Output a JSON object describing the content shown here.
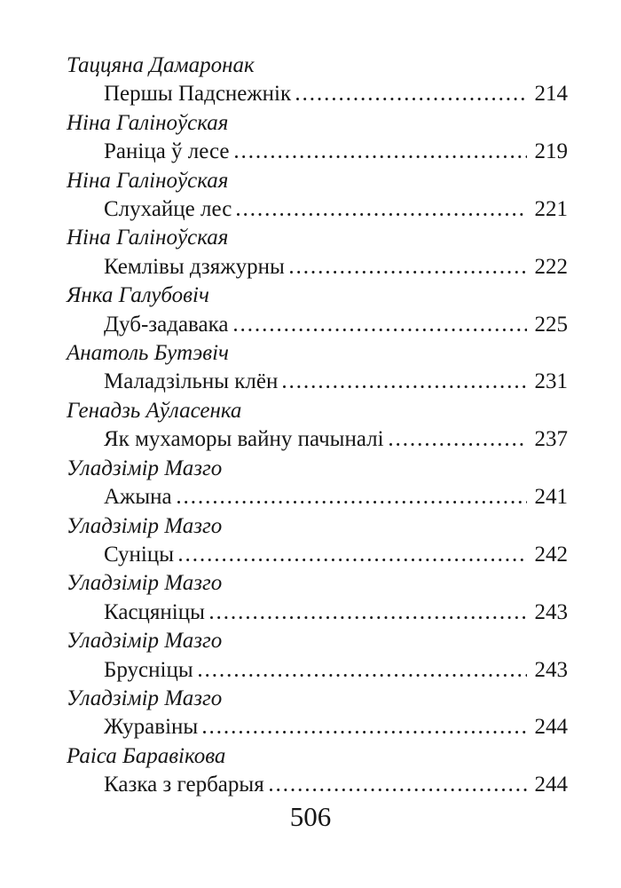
{
  "page": {
    "folio": "506"
  },
  "toc": {
    "entries": [
      {
        "author": "Таццяна Дамаронак",
        "title": "Першы Падснежнік",
        "page": "214"
      },
      {
        "author": "Ніна Галіноўская",
        "title": "Раніца ў лесе",
        "page": "219"
      },
      {
        "author": "Ніна Галіноўская",
        "title": "Слухайце лес",
        "page": "221"
      },
      {
        "author": "Ніна Галіноўская",
        "title": "Кемлівы дзяжурны",
        "page": "222"
      },
      {
        "author": "Янка Галубовіч",
        "title": "Дуб-задавака",
        "page": "225"
      },
      {
        "author": "Анатоль Бутэвіч",
        "title": "Маладзільны клён",
        "page": "231"
      },
      {
        "author": "Генадзь Аўласенка",
        "title": "Як мухаморы вайну пачыналі",
        "page": "237"
      },
      {
        "author": "Уладзімір Мазго",
        "title": "Ажына",
        "page": "241"
      },
      {
        "author": "Уладзімір Мазго",
        "title": "Суніцы",
        "page": "242"
      },
      {
        "author": "Уладзімір Мазго",
        "title": "Касцяніцы",
        "page": "243"
      },
      {
        "author": "Уладзімір Мазго",
        "title": "Брусніцы",
        "page": "243"
      },
      {
        "author": "Уладзімір Мазго",
        "title": "Журавіны",
        "page": "244"
      },
      {
        "author": "Раіса Баравікова",
        "title": "Казка з гербарыя",
        "page": "244"
      }
    ]
  }
}
